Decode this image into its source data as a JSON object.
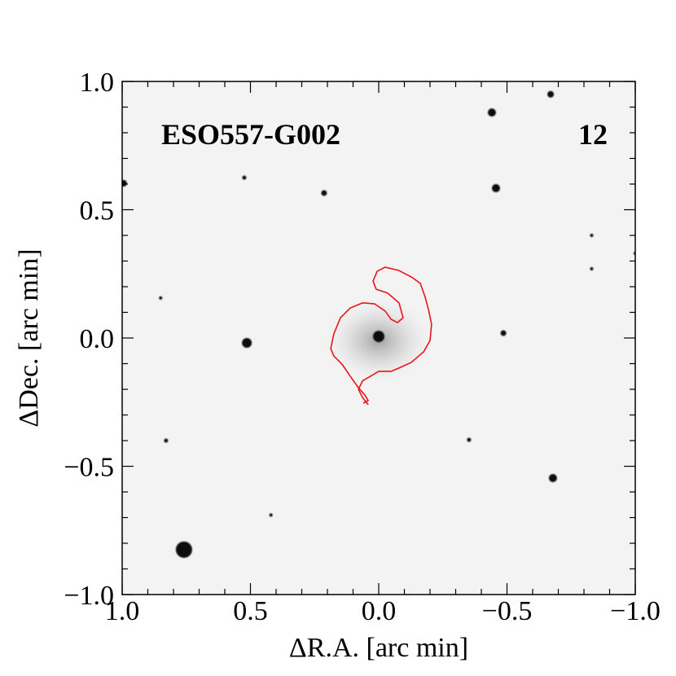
{
  "chart_data": {
    "type": "scatter",
    "title": "ESO557-G002",
    "annotation": "12",
    "xlabel": "ΔR.A. [arc min]",
    "ylabel": "ΔDec. [arc min]",
    "xlim": [
      1.0,
      -1.0
    ],
    "ylim": [
      -1.0,
      1.0
    ],
    "xticks": [
      {
        "value": 1.0,
        "label": "1.0"
      },
      {
        "value": 0.5,
        "label": "0.5"
      },
      {
        "value": 0.0,
        "label": "0.0"
      },
      {
        "value": -0.5,
        "label": "−0.5"
      },
      {
        "value": -1.0,
        "label": "−1.0"
      }
    ],
    "yticks": [
      {
        "value": -1.0,
        "label": "−1.0"
      },
      {
        "value": -0.5,
        "label": "−0.5"
      },
      {
        "value": 0.0,
        "label": "0.0"
      },
      {
        "value": 0.5,
        "label": "0.5"
      },
      {
        "value": 1.0,
        "label": "1.0"
      }
    ],
    "minor_ticks": [
      -0.9,
      -0.8,
      -0.7,
      -0.6,
      -0.4,
      -0.3,
      -0.2,
      -0.1,
      0.1,
      0.2,
      0.3,
      0.4,
      0.6,
      0.7,
      0.8,
      0.9
    ],
    "sources": {
      "color": "#111111",
      "x": [
        -0.441,
        -0.67,
        0.994,
        0.524,
        0.213,
        -0.457,
        0.514,
        0.0,
        -0.486,
        -0.352,
        -0.679,
        0.829,
        0.759,
        0.85,
        -0.83,
        -0.83,
        0.42,
        -1.0
      ],
      "y": [
        0.879,
        0.95,
        0.603,
        0.625,
        0.565,
        0.584,
        -0.019,
        0.006,
        0.019,
        -0.397,
        -0.546,
        -0.4,
        -0.825,
        0.156,
        0.4,
        0.27,
        -0.69,
        0.33
      ],
      "sizes": [
        5,
        4,
        4,
        2.5,
        3.5,
        5,
        6,
        7,
        3.5,
        2.5,
        5,
        2.5,
        10,
        2,
        2,
        2,
        2,
        2
      ]
    },
    "contour": {
      "color": "#e8141c",
      "x": [
        0.06,
        0.041,
        0.054,
        0.079,
        0.111,
        0.143,
        0.175,
        0.187,
        0.175,
        0.149,
        0.111,
        0.063,
        0.016,
        -0.025,
        -0.048,
        -0.073,
        -0.095,
        -0.079,
        -0.035,
        0.01,
        0.022,
        0.006,
        -0.025,
        -0.079,
        -0.127,
        -0.162,
        -0.181,
        -0.194,
        -0.206,
        -0.2,
        -0.175,
        -0.127,
        -0.079,
        -0.048,
        0.0,
        0.032,
        0.063,
        0.079,
        0.063,
        0.041
      ],
      "y": [
        -0.254,
        -0.244,
        -0.222,
        -0.194,
        -0.149,
        -0.102,
        -0.07,
        -0.041,
        0.016,
        0.079,
        0.117,
        0.137,
        0.133,
        0.105,
        0.073,
        0.06,
        0.079,
        0.137,
        0.175,
        0.19,
        0.222,
        0.26,
        0.276,
        0.263,
        0.238,
        0.213,
        0.159,
        0.111,
        0.054,
        -0.01,
        -0.054,
        -0.095,
        -0.117,
        -0.13,
        -0.13,
        -0.149,
        -0.167,
        -0.2,
        -0.232,
        -0.26
      ]
    }
  }
}
